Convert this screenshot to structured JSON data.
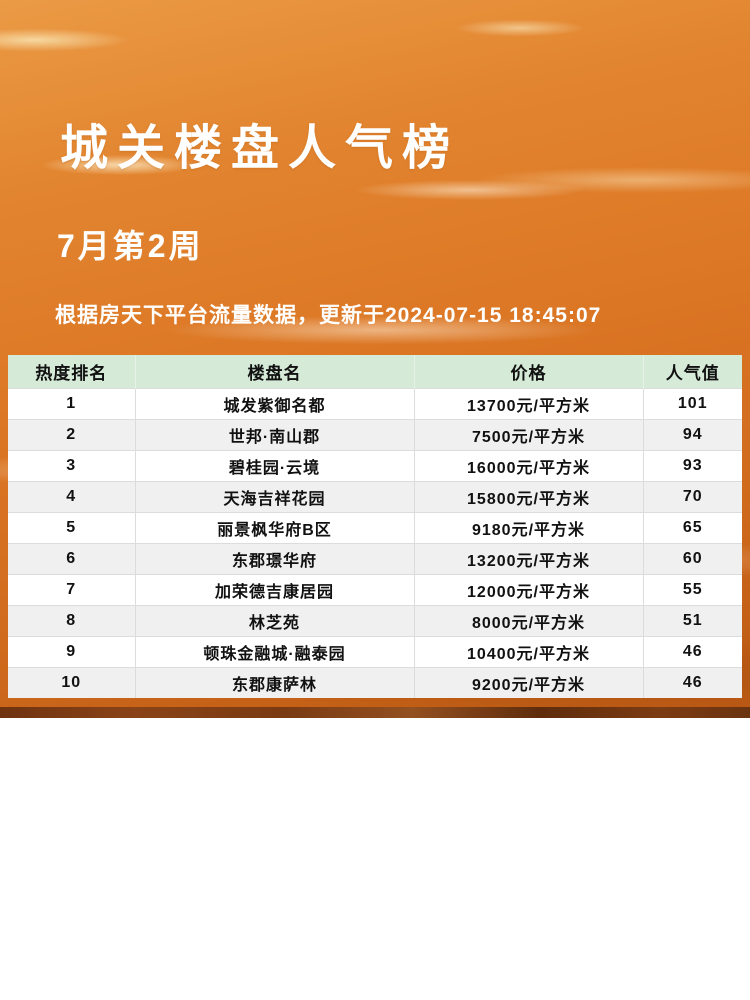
{
  "header": {
    "title": "城关楼盘人气榜",
    "subtitle": "7月第2周",
    "note": "根据房天下平台流量数据，更新于2024-07-15 18:45:07"
  },
  "table": {
    "columns": [
      "热度排名",
      "楼盘名",
      "价格",
      "人气值"
    ],
    "rows": [
      {
        "rank": "1",
        "name": "城发紫御名都",
        "price": "13700元/平方米",
        "popularity": "101"
      },
      {
        "rank": "2",
        "name": "世邦·南山郡",
        "price": "7500元/平方米",
        "popularity": "94"
      },
      {
        "rank": "3",
        "name": "碧桂园·云境",
        "price": "16000元/平方米",
        "popularity": "93"
      },
      {
        "rank": "4",
        "name": "天海吉祥花园",
        "price": "15800元/平方米",
        "popularity": "70"
      },
      {
        "rank": "5",
        "name": "丽景枫华府B区",
        "price": "9180元/平方米",
        "popularity": "65"
      },
      {
        "rank": "6",
        "name": "东郡璟华府",
        "price": "13200元/平方米",
        "popularity": "60"
      },
      {
        "rank": "7",
        "name": "加荣德吉康居园",
        "price": "12000元/平方米",
        "popularity": "55"
      },
      {
        "rank": "8",
        "name": "林芝苑",
        "price": "8000元/平方米",
        "popularity": "51"
      },
      {
        "rank": "9",
        "name": "顿珠金融城·融泰园",
        "price": "10400元/平方米",
        "popularity": "46"
      },
      {
        "rank": "10",
        "name": "东郡康萨林",
        "price": "9200元/平方米",
        "popularity": "46"
      }
    ]
  },
  "colors": {
    "table_header_bg": "#d5ebd8",
    "row_alt_bg": "#f0f0f0",
    "sky_top": "#eb9a45",
    "sky_main": "#dd7b26",
    "sky_bottom": "#b65714",
    "bottom_strip": "#7a3a12",
    "text_on_sky": "#ffffff",
    "table_text": "#111111"
  }
}
